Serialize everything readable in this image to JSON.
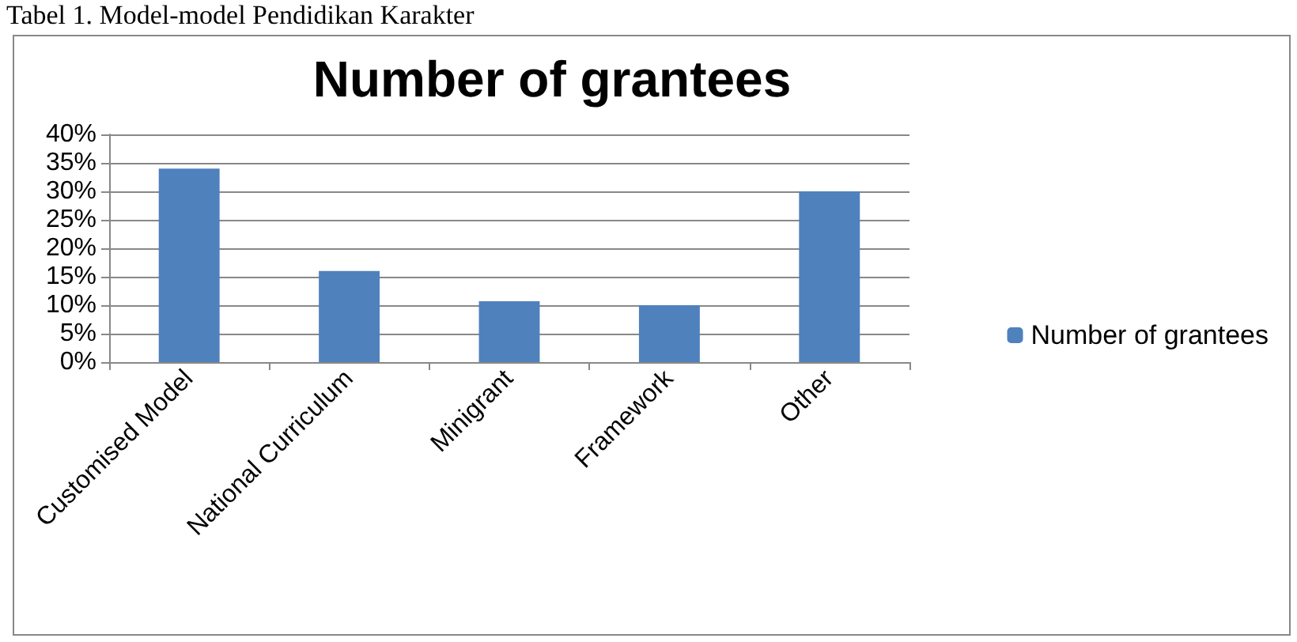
{
  "chart_data": {
    "type": "bar",
    "title": "Number of grantees",
    "annotations": [
      "Tabel 1. Model-model Pendidikan Karakter"
    ],
    "categories": [
      "Customised Model",
      "National Curriculum",
      "Minigrant",
      "Framework",
      "Other"
    ],
    "series": [
      {
        "name": "Number of grantees",
        "color": "#4f81bd",
        "values": [
          34,
          16,
          10.7,
          10,
          30
        ]
      }
    ],
    "ylim": [
      0,
      40
    ],
    "yticks": [
      {
        "value": 0,
        "label": "0%"
      },
      {
        "value": 5,
        "label": "5%"
      },
      {
        "value": 10,
        "label": "10%"
      },
      {
        "value": 15,
        "label": "15%"
      },
      {
        "value": 20,
        "label": "20%"
      },
      {
        "value": 25,
        "label": "25%"
      },
      {
        "value": 30,
        "label": "30%"
      },
      {
        "value": 35,
        "label": "35%"
      },
      {
        "value": 40,
        "label": "40%"
      }
    ],
    "grid": "y",
    "legend": "right"
  }
}
